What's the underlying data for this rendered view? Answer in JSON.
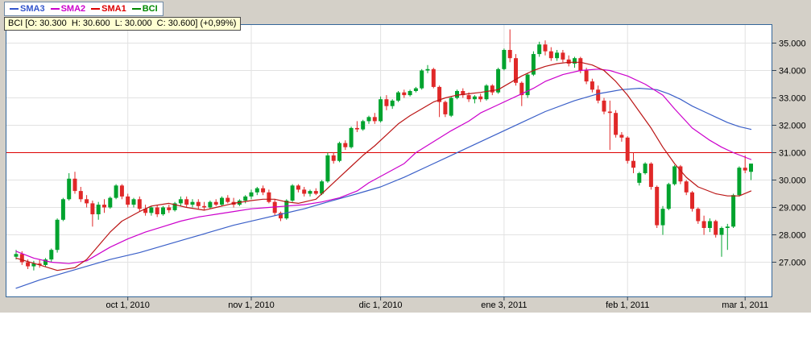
{
  "legend": {
    "items": [
      {
        "label": "SMA3",
        "color": "#3355cc"
      },
      {
        "label": "SMA2",
        "color": "#cc00cc"
      },
      {
        "label": "SMA1",
        "color": "#dd0000"
      },
      {
        "label": "BCI",
        "color": "#008800"
      }
    ]
  },
  "quote_bar": {
    "text": "BCI [O: 30.300  H: 30.600  L: 30.000  C: 30.600] (+0,99%)",
    "symbol": "BCI",
    "open": "30.300",
    "high": "30.600",
    "low": "30.000",
    "close": "30.600",
    "change_pct": "+0,99%"
  },
  "colors": {
    "chrome": "#d4d0c8",
    "plot_bg": "#ffffff",
    "grid": "#e2e2e2",
    "frame": "#336699",
    "tick": "#334455",
    "up": "#00a32e",
    "down": "#e02828",
    "hline": "#dd0000",
    "text": "#000000"
  },
  "chart_data": {
    "type": "candlestick",
    "symbol": "BCI",
    "title": "",
    "xlabel": "",
    "ylabel": "",
    "grid": true,
    "legend_position": "top-left",
    "ylim": [
      25.7,
      35.7
    ],
    "values_in_thousands": true,
    "y_axis": {
      "ticks": [
        27,
        28,
        29,
        30,
        31,
        32,
        33,
        34,
        35
      ],
      "tick_labels": [
        "27.000",
        "28.000",
        "29.000",
        "30.000",
        "31.000",
        "32.000",
        "33.000",
        "34.000",
        "35.000"
      ]
    },
    "x_axis": {
      "ticks": [
        {
          "index": 19,
          "label": "oct 1, 2010"
        },
        {
          "index": 40,
          "label": "nov 1, 2010"
        },
        {
          "index": 62,
          "label": "dic 1, 2010"
        },
        {
          "index": 83,
          "label": "ene 3, 2011"
        },
        {
          "index": 104,
          "label": "feb 1, 2011"
        },
        {
          "index": 124,
          "label": "mar 1, 2011"
        }
      ]
    },
    "hline": {
      "value": 31.0,
      "label": "31.000"
    },
    "candles": [
      [
        27.2,
        27.45,
        27.1,
        27.3
      ],
      [
        27.3,
        27.4,
        26.9,
        27.0
      ],
      [
        27.0,
        27.1,
        26.75,
        26.85
      ],
      [
        26.85,
        27.05,
        26.7,
        26.95
      ],
      [
        26.95,
        27.1,
        26.8,
        26.9
      ],
      [
        26.9,
        27.15,
        26.85,
        27.1
      ],
      [
        27.1,
        27.5,
        27.0,
        27.45
      ],
      [
        27.45,
        28.6,
        27.35,
        28.55
      ],
      [
        28.55,
        29.35,
        28.5,
        29.3
      ],
      [
        29.3,
        30.25,
        29.25,
        30.05
      ],
      [
        30.05,
        30.3,
        29.5,
        29.6
      ],
      [
        29.6,
        29.75,
        29.2,
        29.3
      ],
      [
        29.3,
        29.45,
        29.0,
        29.15
      ],
      [
        29.15,
        29.25,
        28.3,
        28.75
      ],
      [
        28.75,
        29.2,
        28.55,
        29.1
      ],
      [
        29.1,
        29.3,
        28.8,
        29.0
      ],
      [
        29.0,
        29.4,
        28.95,
        29.35
      ],
      [
        29.35,
        29.85,
        29.3,
        29.8
      ],
      [
        29.8,
        29.85,
        29.3,
        29.4
      ],
      [
        29.4,
        29.5,
        29.0,
        29.1
      ],
      [
        29.1,
        29.35,
        29.0,
        29.3
      ],
      [
        29.3,
        29.4,
        28.85,
        28.95
      ],
      [
        28.95,
        29.1,
        28.7,
        28.8
      ],
      [
        28.8,
        29.05,
        28.7,
        29.0
      ],
      [
        29.0,
        29.1,
        28.65,
        28.75
      ],
      [
        28.75,
        29.05,
        28.7,
        29.0
      ],
      [
        29.0,
        29.1,
        28.8,
        28.9
      ],
      [
        28.9,
        29.2,
        28.85,
        29.15
      ],
      [
        29.15,
        29.4,
        29.05,
        29.3
      ],
      [
        29.3,
        29.4,
        29.0,
        29.1
      ],
      [
        29.1,
        29.3,
        29.0,
        29.2
      ],
      [
        29.2,
        29.3,
        28.95,
        29.05
      ],
      [
        29.05,
        29.2,
        28.9,
        29.0
      ],
      [
        29.0,
        29.25,
        28.95,
        29.2
      ],
      [
        29.2,
        29.3,
        29.05,
        29.1
      ],
      [
        29.1,
        29.4,
        29.05,
        29.35
      ],
      [
        29.35,
        29.45,
        29.15,
        29.2
      ],
      [
        29.2,
        29.35,
        29.0,
        29.1
      ],
      [
        29.1,
        29.3,
        29.05,
        29.25
      ],
      [
        29.25,
        29.45,
        29.15,
        29.4
      ],
      [
        29.4,
        29.65,
        29.3,
        29.55
      ],
      [
        29.55,
        29.75,
        29.45,
        29.7
      ],
      [
        29.7,
        29.8,
        29.45,
        29.55
      ],
      [
        29.55,
        29.65,
        29.15,
        29.2
      ],
      [
        29.2,
        29.3,
        28.7,
        28.8
      ],
      [
        28.8,
        28.85,
        28.5,
        28.6
      ],
      [
        28.6,
        29.3,
        28.55,
        29.25
      ],
      [
        29.25,
        29.85,
        29.2,
        29.8
      ],
      [
        29.8,
        29.85,
        29.55,
        29.65
      ],
      [
        29.65,
        29.75,
        29.4,
        29.5
      ],
      [
        29.5,
        29.65,
        29.4,
        29.6
      ],
      [
        29.6,
        29.7,
        29.45,
        29.5
      ],
      [
        29.5,
        30.0,
        29.45,
        29.95
      ],
      [
        29.95,
        31.0,
        29.9,
        30.9
      ],
      [
        30.9,
        31.0,
        30.6,
        30.7
      ],
      [
        30.7,
        31.4,
        30.65,
        31.35
      ],
      [
        31.35,
        31.45,
        31.1,
        31.2
      ],
      [
        31.2,
        31.95,
        31.15,
        31.9
      ],
      [
        31.9,
        32.15,
        31.75,
        31.85
      ],
      [
        31.85,
        32.2,
        31.8,
        32.15
      ],
      [
        32.15,
        32.35,
        32.05,
        32.3
      ],
      [
        32.3,
        32.45,
        32.05,
        32.15
      ],
      [
        32.15,
        33.05,
        32.1,
        32.95
      ],
      [
        32.95,
        33.1,
        32.55,
        32.7
      ],
      [
        32.7,
        32.95,
        32.6,
        32.9
      ],
      [
        32.9,
        33.25,
        32.85,
        33.2
      ],
      [
        33.2,
        33.3,
        33.0,
        33.1
      ],
      [
        33.1,
        33.3,
        33.05,
        33.25
      ],
      [
        33.25,
        33.4,
        33.2,
        33.35
      ],
      [
        33.35,
        34.05,
        33.3,
        34.0
      ],
      [
        34.0,
        34.2,
        33.9,
        34.05
      ],
      [
        34.05,
        34.1,
        33.35,
        33.4
      ],
      [
        33.4,
        33.45,
        32.3,
        32.85
      ],
      [
        32.85,
        32.9,
        32.3,
        32.4
      ],
      [
        32.35,
        33.05,
        32.3,
        33.0
      ],
      [
        33.0,
        33.3,
        32.95,
        33.25
      ],
      [
        33.25,
        33.35,
        33.0,
        33.1
      ],
      [
        33.1,
        33.2,
        32.85,
        32.95
      ],
      [
        32.95,
        33.1,
        32.8,
        33.05
      ],
      [
        33.05,
        33.15,
        32.85,
        32.95
      ],
      [
        32.95,
        33.5,
        32.9,
        33.45
      ],
      [
        33.45,
        33.5,
        33.1,
        33.2
      ],
      [
        33.2,
        34.1,
        33.15,
        34.05
      ],
      [
        34.05,
        34.8,
        34.0,
        34.75
      ],
      [
        34.75,
        35.5,
        34.3,
        34.45
      ],
      [
        34.45,
        34.6,
        33.45,
        33.55
      ],
      [
        33.55,
        33.6,
        32.7,
        33.1
      ],
      [
        33.1,
        33.9,
        33.0,
        33.85
      ],
      [
        33.85,
        34.7,
        33.8,
        34.6
      ],
      [
        34.6,
        35.05,
        34.5,
        34.95
      ],
      [
        34.95,
        35.1,
        34.55,
        34.7
      ],
      [
        34.7,
        34.85,
        34.35,
        34.45
      ],
      [
        34.45,
        34.75,
        34.35,
        34.65
      ],
      [
        34.65,
        34.75,
        34.3,
        34.4
      ],
      [
        34.4,
        34.55,
        34.15,
        34.25
      ],
      [
        34.25,
        34.5,
        34.1,
        34.45
      ],
      [
        34.45,
        34.5,
        33.9,
        34.0
      ],
      [
        34.0,
        34.1,
        33.5,
        33.6
      ],
      [
        33.6,
        33.7,
        33.2,
        33.3
      ],
      [
        33.3,
        33.45,
        32.8,
        32.9
      ],
      [
        32.9,
        33.0,
        32.4,
        32.5
      ],
      [
        32.5,
        32.9,
        31.1,
        32.45
      ],
      [
        32.45,
        32.55,
        31.55,
        31.65
      ],
      [
        31.65,
        31.75,
        31.4,
        31.55
      ],
      [
        31.55,
        31.6,
        30.6,
        30.7
      ],
      [
        30.7,
        31.0,
        30.25,
        30.45
      ],
      [
        29.9,
        30.3,
        29.8,
        30.25
      ],
      [
        30.25,
        30.65,
        30.2,
        30.6
      ],
      [
        30.6,
        30.65,
        29.65,
        29.75
      ],
      [
        29.75,
        29.8,
        28.25,
        28.35
      ],
      [
        28.35,
        29.05,
        28.0,
        28.95
      ],
      [
        28.95,
        29.9,
        28.9,
        29.85
      ],
      [
        29.85,
        30.55,
        29.8,
        30.5
      ],
      [
        30.5,
        30.55,
        29.85,
        29.95
      ],
      [
        29.95,
        30.0,
        29.45,
        29.55
      ],
      [
        29.55,
        29.6,
        28.85,
        28.95
      ],
      [
        28.95,
        29.0,
        28.4,
        28.5
      ],
      [
        28.5,
        28.7,
        28.0,
        28.25
      ],
      [
        28.25,
        28.6,
        28.1,
        28.5
      ],
      [
        28.5,
        28.55,
        27.9,
        28.0
      ],
      [
        28.0,
        28.3,
        27.2,
        28.25
      ],
      [
        28.25,
        28.4,
        27.45,
        28.3
      ],
      [
        28.3,
        29.5,
        28.25,
        29.45
      ],
      [
        29.45,
        30.5,
        29.4,
        30.45
      ],
      [
        30.45,
        30.9,
        30.25,
        30.35
      ],
      [
        30.3,
        30.6,
        30.0,
        30.6
      ]
    ],
    "overlays": [
      {
        "name": "SMA3",
        "color": "#3a5fc8",
        "points": [
          [
            0,
            26.05
          ],
          [
            4,
            26.35
          ],
          [
            8,
            26.6
          ],
          [
            12,
            26.85
          ],
          [
            16,
            27.1
          ],
          [
            21,
            27.35
          ],
          [
            25,
            27.6
          ],
          [
            29,
            27.85
          ],
          [
            33,
            28.1
          ],
          [
            37,
            28.35
          ],
          [
            41,
            28.55
          ],
          [
            45,
            28.75
          ],
          [
            49,
            28.95
          ],
          [
            53,
            29.2
          ],
          [
            58,
            29.5
          ],
          [
            62,
            29.75
          ],
          [
            66,
            30.1
          ],
          [
            70,
            30.5
          ],
          [
            74,
            30.9
          ],
          [
            78,
            31.3
          ],
          [
            82,
            31.7
          ],
          [
            86,
            32.1
          ],
          [
            90,
            32.5
          ],
          [
            95,
            32.9
          ],
          [
            99,
            33.15
          ],
          [
            103,
            33.3
          ],
          [
            106,
            33.35
          ],
          [
            109,
            33.3
          ],
          [
            111,
            33.15
          ],
          [
            113,
            32.95
          ],
          [
            115,
            32.7
          ],
          [
            117,
            32.5
          ],
          [
            119,
            32.3
          ],
          [
            121,
            32.1
          ],
          [
            123,
            31.95
          ],
          [
            125,
            31.85
          ]
        ]
      },
      {
        "name": "SMA2",
        "color": "#cc00cc",
        "points": [
          [
            0,
            27.4
          ],
          [
            3,
            27.15
          ],
          [
            6,
            27.0
          ],
          [
            9,
            26.95
          ],
          [
            12,
            27.05
          ],
          [
            14,
            27.3
          ],
          [
            16,
            27.55
          ],
          [
            19,
            27.85
          ],
          [
            22,
            28.1
          ],
          [
            25,
            28.3
          ],
          [
            28,
            28.5
          ],
          [
            31,
            28.65
          ],
          [
            34,
            28.75
          ],
          [
            37,
            28.85
          ],
          [
            40,
            28.95
          ],
          [
            43,
            29.0
          ],
          [
            46,
            29.05
          ],
          [
            49,
            29.1
          ],
          [
            52,
            29.2
          ],
          [
            55,
            29.35
          ],
          [
            58,
            29.6
          ],
          [
            60,
            29.9
          ],
          [
            63,
            30.25
          ],
          [
            66,
            30.6
          ],
          [
            68,
            31.0
          ],
          [
            71,
            31.4
          ],
          [
            74,
            31.8
          ],
          [
            77,
            32.15
          ],
          [
            79,
            32.45
          ],
          [
            82,
            32.75
          ],
          [
            85,
            33.05
          ],
          [
            88,
            33.35
          ],
          [
            90,
            33.6
          ],
          [
            93,
            33.85
          ],
          [
            96,
            34.0
          ],
          [
            99,
            34.05
          ],
          [
            101,
            34.0
          ],
          [
            104,
            33.8
          ],
          [
            107,
            33.5
          ],
          [
            110,
            33.1
          ],
          [
            112,
            32.6
          ],
          [
            115,
            31.9
          ],
          [
            118,
            31.45
          ],
          [
            120,
            31.2
          ],
          [
            122,
            31.0
          ],
          [
            125,
            30.75
          ]
        ]
      },
      {
        "name": "SMA1",
        "color": "#bb1515",
        "points": [
          [
            0,
            27.15
          ],
          [
            4,
            26.9
          ],
          [
            7,
            26.7
          ],
          [
            10,
            26.8
          ],
          [
            12,
            27.1
          ],
          [
            14,
            27.6
          ],
          [
            16,
            28.1
          ],
          [
            18,
            28.5
          ],
          [
            21,
            28.85
          ],
          [
            23,
            29.05
          ],
          [
            26,
            29.15
          ],
          [
            29,
            29.0
          ],
          [
            32,
            28.9
          ],
          [
            34,
            29.0
          ],
          [
            37,
            29.15
          ],
          [
            40,
            29.25
          ],
          [
            42,
            29.3
          ],
          [
            44,
            29.3
          ],
          [
            46,
            29.2
          ],
          [
            48,
            29.15
          ],
          [
            51,
            29.3
          ],
          [
            53,
            29.7
          ],
          [
            55,
            30.1
          ],
          [
            57,
            30.5
          ],
          [
            59,
            30.9
          ],
          [
            61,
            31.25
          ],
          [
            63,
            31.65
          ],
          [
            65,
            32.05
          ],
          [
            67,
            32.35
          ],
          [
            69,
            32.6
          ],
          [
            71,
            32.85
          ],
          [
            73,
            33.0
          ],
          [
            75,
            33.1
          ],
          [
            77,
            33.15
          ],
          [
            79,
            33.2
          ],
          [
            82,
            33.3
          ],
          [
            84,
            33.55
          ],
          [
            86,
            33.8
          ],
          [
            88,
            34.0
          ],
          [
            90,
            34.15
          ],
          [
            92,
            34.25
          ],
          [
            94,
            34.3
          ],
          [
            96,
            34.3
          ],
          [
            98,
            34.2
          ],
          [
            100,
            34.0
          ],
          [
            102,
            33.6
          ],
          [
            104,
            33.1
          ],
          [
            106,
            32.5
          ],
          [
            108,
            31.9
          ],
          [
            110,
            31.2
          ],
          [
            112,
            30.6
          ],
          [
            114,
            30.1
          ],
          [
            116,
            29.75
          ],
          [
            119,
            29.5
          ],
          [
            121,
            29.42
          ],
          [
            123,
            29.42
          ],
          [
            125,
            29.6
          ]
        ]
      }
    ]
  }
}
